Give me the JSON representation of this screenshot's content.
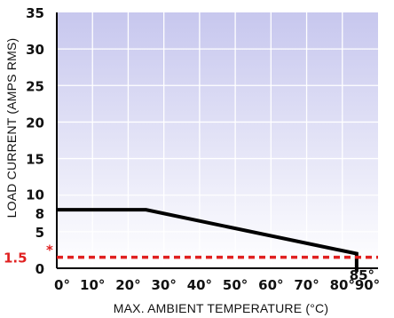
{
  "chart_data": {
    "type": "line",
    "xlabel": "MAX. AMBIENT TEMPERATURE (°C)",
    "ylabel": "LOAD CURRENT (AMPS RMS)",
    "xlim": [
      0,
      90
    ],
    "ylim": [
      0,
      35
    ],
    "grid": true,
    "x_ticks": [
      {
        "value": 0,
        "label": "0°"
      },
      {
        "value": 10,
        "label": "10°"
      },
      {
        "value": 20,
        "label": "20°"
      },
      {
        "value": 30,
        "label": "30°"
      },
      {
        "value": 40,
        "label": "40°"
      },
      {
        "value": 50,
        "label": "50°"
      },
      {
        "value": 60,
        "label": "60°"
      },
      {
        "value": 70,
        "label": "70°"
      },
      {
        "value": 80,
        "label": "80°"
      },
      {
        "value": 90,
        "label": "90°"
      }
    ],
    "x_extra_tick": {
      "value": 85,
      "label": "85°"
    },
    "y_ticks": [
      {
        "value": 0,
        "label": "0"
      },
      {
        "value": 5,
        "label": "5"
      },
      {
        "value": 8,
        "label": "8"
      },
      {
        "value": 10,
        "label": "10"
      },
      {
        "value": 15,
        "label": "15"
      },
      {
        "value": 20,
        "label": "20"
      },
      {
        "value": 25,
        "label": "25"
      },
      {
        "value": 30,
        "label": "30"
      },
      {
        "value": 35,
        "label": "35"
      }
    ],
    "series": [
      {
        "color": "#000000",
        "points": [
          [
            0,
            8
          ],
          [
            25,
            8
          ],
          [
            84,
            2
          ],
          [
            84,
            -0.5
          ]
        ]
      }
    ],
    "reference_line": {
      "y": 1.5,
      "label": "1.5",
      "marker": "*",
      "style": "dashed",
      "color": "#e02020"
    }
  },
  "colors": {
    "plot_bg_top": "#c7c7ee",
    "plot_bg_bottom": "#ffffff",
    "grid": "#ffffff",
    "axis": "#000000"
  }
}
